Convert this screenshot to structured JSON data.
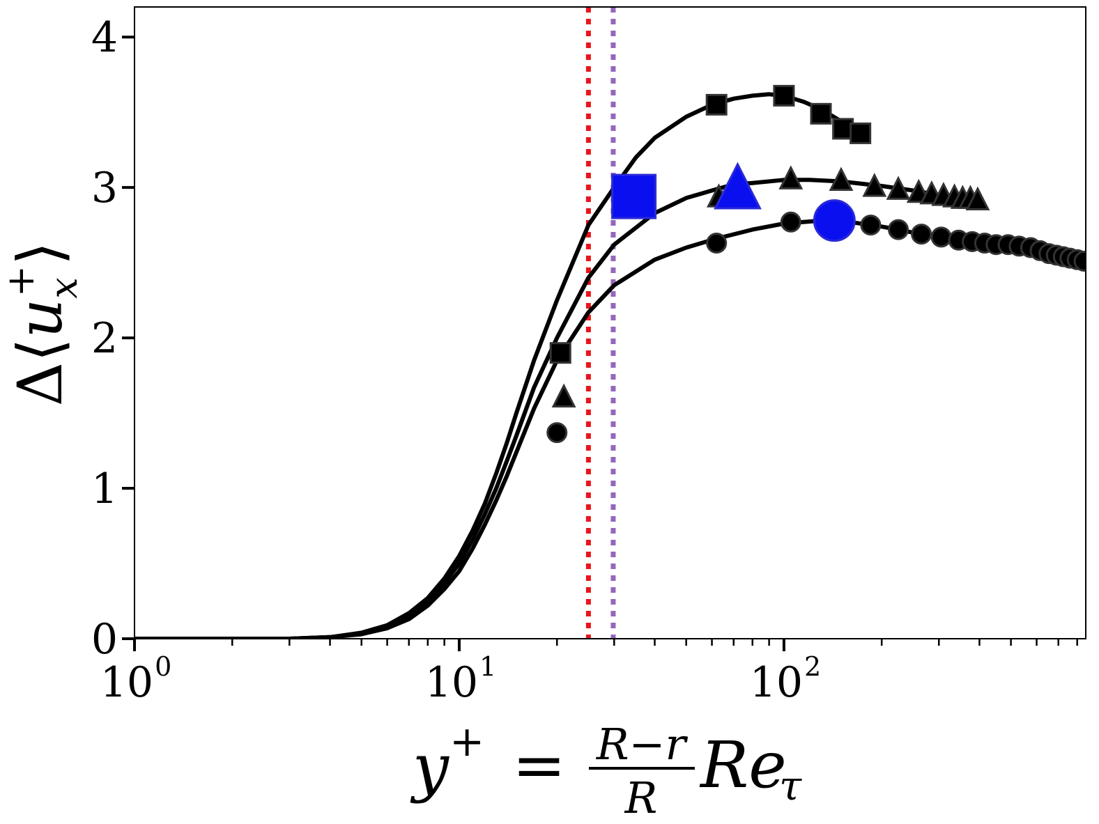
{
  "chart_data": {
    "type": "line",
    "title": "",
    "xlabel": {
      "lhs": "y",
      "lhs_sup": "+",
      "equals": "=",
      "frac_num": "R−r",
      "frac_den": "R",
      "tail": "Re",
      "tail_sub": "τ"
    },
    "ylabel": {
      "prefix": "Δ",
      "open": "⟨",
      "var": "u",
      "sub": "x",
      "sup": "+",
      "close": "⟩"
    },
    "xscale": "log",
    "xlim": [
      1,
      850
    ],
    "ylim": [
      0,
      4.2
    ],
    "xticks": [
      {
        "base": "10",
        "exp": "0",
        "value": 1
      },
      {
        "base": "10",
        "exp": "1",
        "value": 10
      },
      {
        "base": "10",
        "exp": "2",
        "value": 100
      }
    ],
    "yticks": [
      {
        "label": "0",
        "value": 0
      },
      {
        "label": "1",
        "value": 1
      },
      {
        "label": "2",
        "value": 2
      },
      {
        "label": "3",
        "value": 3
      },
      {
        "label": "4",
        "value": 4
      }
    ],
    "vlines": [
      {
        "name": "red-dotted-line",
        "x": 25,
        "color": "#e8151b"
      },
      {
        "name": "purple-dotted-line",
        "x": 29.8,
        "color": "#9467bd"
      }
    ],
    "series": [
      {
        "name": "square-series",
        "marker": "square",
        "curve": [
          [
            1,
            0
          ],
          [
            2,
            0
          ],
          [
            3,
            0
          ],
          [
            4,
            0.01
          ],
          [
            5,
            0.04
          ],
          [
            6,
            0.09
          ],
          [
            7,
            0.17
          ],
          [
            8,
            0.27
          ],
          [
            9,
            0.4
          ],
          [
            10,
            0.55
          ],
          [
            11,
            0.72
          ],
          [
            12,
            0.9
          ],
          [
            13,
            1.1
          ],
          [
            14,
            1.3
          ],
          [
            15,
            1.5
          ],
          [
            17,
            1.85
          ],
          [
            20,
            2.25
          ],
          [
            25,
            2.75
          ],
          [
            30,
            3.0
          ],
          [
            35,
            3.2
          ],
          [
            40,
            3.33
          ],
          [
            50,
            3.47
          ],
          [
            60,
            3.55
          ],
          [
            70,
            3.59
          ],
          [
            80,
            3.61
          ],
          [
            90,
            3.62
          ],
          [
            100,
            3.61
          ],
          [
            115,
            3.57
          ],
          [
            130,
            3.52
          ],
          [
            150,
            3.44
          ],
          [
            170,
            3.38
          ],
          [
            178,
            3.35
          ]
        ],
        "markers": [
          [
            20.5,
            1.9
          ],
          [
            62,
            3.55
          ],
          [
            100,
            3.61
          ],
          [
            130,
            3.49
          ],
          [
            152,
            3.39
          ],
          [
            172,
            3.36
          ]
        ]
      },
      {
        "name": "triangle-series",
        "marker": "triangle",
        "curve": [
          [
            1,
            0
          ],
          [
            2,
            0
          ],
          [
            3,
            0
          ],
          [
            4,
            0.01
          ],
          [
            5,
            0.03
          ],
          [
            6,
            0.08
          ],
          [
            7,
            0.15
          ],
          [
            8,
            0.25
          ],
          [
            9,
            0.37
          ],
          [
            10,
            0.5
          ],
          [
            11,
            0.66
          ],
          [
            12,
            0.83
          ],
          [
            13,
            1.0
          ],
          [
            14,
            1.18
          ],
          [
            15,
            1.35
          ],
          [
            17,
            1.67
          ],
          [
            20,
            2.0
          ],
          [
            25,
            2.4
          ],
          [
            30,
            2.62
          ],
          [
            40,
            2.83
          ],
          [
            50,
            2.93
          ],
          [
            60,
            2.98
          ],
          [
            70,
            3.02
          ],
          [
            80,
            3.03
          ],
          [
            100,
            3.05
          ],
          [
            120,
            3.05
          ],
          [
            150,
            3.04
          ],
          [
            200,
            3.01
          ],
          [
            250,
            2.98
          ],
          [
            300,
            2.95
          ],
          [
            350,
            2.93
          ],
          [
            400,
            2.91
          ]
        ],
        "markers": [
          [
            21,
            1.6
          ],
          [
            63,
            2.93
          ],
          [
            105,
            3.05
          ],
          [
            150,
            3.04
          ],
          [
            190,
            3.0
          ],
          [
            225,
            2.98
          ],
          [
            260,
            2.96
          ],
          [
            285,
            2.95
          ],
          [
            310,
            2.94
          ],
          [
            335,
            2.93
          ],
          [
            355,
            2.92
          ],
          [
            375,
            2.92
          ],
          [
            395,
            2.91
          ]
        ]
      },
      {
        "name": "circle-series",
        "marker": "circle",
        "curve": [
          [
            1,
            0
          ],
          [
            2,
            0
          ],
          [
            3,
            0
          ],
          [
            4,
            0.01
          ],
          [
            5,
            0.03
          ],
          [
            6,
            0.07
          ],
          [
            7,
            0.13
          ],
          [
            8,
            0.22
          ],
          [
            9,
            0.33
          ],
          [
            10,
            0.45
          ],
          [
            11,
            0.6
          ],
          [
            12,
            0.76
          ],
          [
            13,
            0.92
          ],
          [
            14,
            1.08
          ],
          [
            15,
            1.24
          ],
          [
            17,
            1.53
          ],
          [
            20,
            1.85
          ],
          [
            25,
            2.17
          ],
          [
            30,
            2.35
          ],
          [
            40,
            2.52
          ],
          [
            50,
            2.6
          ],
          [
            62,
            2.66
          ],
          [
            80,
            2.72
          ],
          [
            100,
            2.76
          ],
          [
            130,
            2.78
          ],
          [
            160,
            2.77
          ],
          [
            200,
            2.74
          ],
          [
            250,
            2.7
          ],
          [
            300,
            2.67
          ],
          [
            400,
            2.63
          ],
          [
            500,
            2.6
          ],
          [
            600,
            2.56
          ],
          [
            700,
            2.53
          ],
          [
            850,
            2.5
          ]
        ],
        "markers": [
          [
            20,
            1.37
          ],
          [
            62,
            2.63
          ],
          [
            105,
            2.77
          ],
          [
            185,
            2.75
          ],
          [
            225,
            2.72
          ],
          [
            265,
            2.69
          ],
          [
            305,
            2.67
          ],
          [
            345,
            2.65
          ],
          [
            380,
            2.64
          ],
          [
            415,
            2.63
          ],
          [
            450,
            2.62
          ],
          [
            490,
            2.62
          ],
          [
            530,
            2.61
          ],
          [
            575,
            2.6
          ],
          [
            615,
            2.58
          ],
          [
            655,
            2.56
          ],
          [
            690,
            2.55
          ],
          [
            725,
            2.54
          ],
          [
            760,
            2.53
          ],
          [
            800,
            2.52
          ],
          [
            840,
            2.51
          ]
        ]
      }
    ],
    "highlights": [
      {
        "name": "blue-square-marker",
        "shape": "square",
        "x": 34.5,
        "y": 2.94,
        "color": "#0a0ff0"
      },
      {
        "name": "blue-triangle-marker",
        "shape": "triangle",
        "x": 72,
        "y": 2.98,
        "color": "#0a0ff0"
      },
      {
        "name": "blue-circle-marker",
        "shape": "circle",
        "x": 143,
        "y": 2.78,
        "color": "#0a0ff0"
      }
    ]
  }
}
